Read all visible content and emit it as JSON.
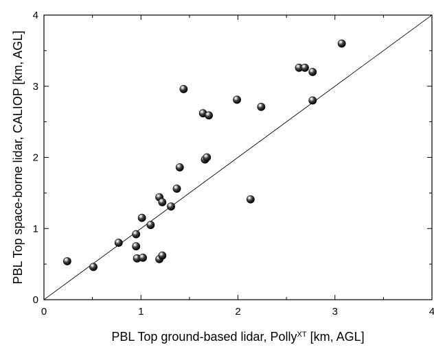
{
  "chart_data": {
    "type": "scatter",
    "title": "",
    "xlabel": {
      "prefix": "PBL Top ground-based lidar, Polly",
      "superscript": "XT",
      "suffix": " [km, AGL]"
    },
    "ylabel": "PBL Top space-borne lidar, CALIOP [km, AGL]",
    "xlim": [
      0,
      4
    ],
    "ylim": [
      0,
      4
    ],
    "xticks": [
      0,
      1,
      2,
      3,
      4
    ],
    "yticks": [
      0,
      1,
      2,
      3,
      4
    ],
    "xtick_labels": [
      "0",
      "1",
      "2",
      "3",
      "4"
    ],
    "ytick_labels": [
      "0",
      "1",
      "2",
      "3",
      "4"
    ],
    "minor_tick_step": 0.5,
    "grid": false,
    "legend": "none",
    "reference_line": {
      "type": "1:1",
      "from": [
        0,
        0
      ],
      "to": [
        4,
        4
      ]
    },
    "marker_color": "#000000",
    "points": [
      {
        "x": 0.24,
        "y": 0.54
      },
      {
        "x": 0.51,
        "y": 0.46
      },
      {
        "x": 0.77,
        "y": 0.8
      },
      {
        "x": 0.95,
        "y": 0.92
      },
      {
        "x": 0.95,
        "y": 0.75
      },
      {
        "x": 0.96,
        "y": 0.58
      },
      {
        "x": 1.02,
        "y": 0.59
      },
      {
        "x": 1.01,
        "y": 1.15
      },
      {
        "x": 1.1,
        "y": 1.05
      },
      {
        "x": 1.19,
        "y": 1.44
      },
      {
        "x": 1.22,
        "y": 1.37
      },
      {
        "x": 1.19,
        "y": 0.57
      },
      {
        "x": 1.22,
        "y": 0.62
      },
      {
        "x": 1.31,
        "y": 1.31
      },
      {
        "x": 1.37,
        "y": 1.56
      },
      {
        "x": 1.4,
        "y": 1.86
      },
      {
        "x": 1.44,
        "y": 2.96
      },
      {
        "x": 1.64,
        "y": 2.62
      },
      {
        "x": 1.7,
        "y": 2.59
      },
      {
        "x": 1.66,
        "y": 1.97
      },
      {
        "x": 1.68,
        "y": 2.0
      },
      {
        "x": 1.99,
        "y": 2.81
      },
      {
        "x": 2.13,
        "y": 1.41
      },
      {
        "x": 2.24,
        "y": 2.71
      },
      {
        "x": 2.63,
        "y": 3.26
      },
      {
        "x": 2.69,
        "y": 3.26
      },
      {
        "x": 2.77,
        "y": 3.2
      },
      {
        "x": 2.77,
        "y": 2.8
      },
      {
        "x": 3.07,
        "y": 3.6
      }
    ]
  }
}
